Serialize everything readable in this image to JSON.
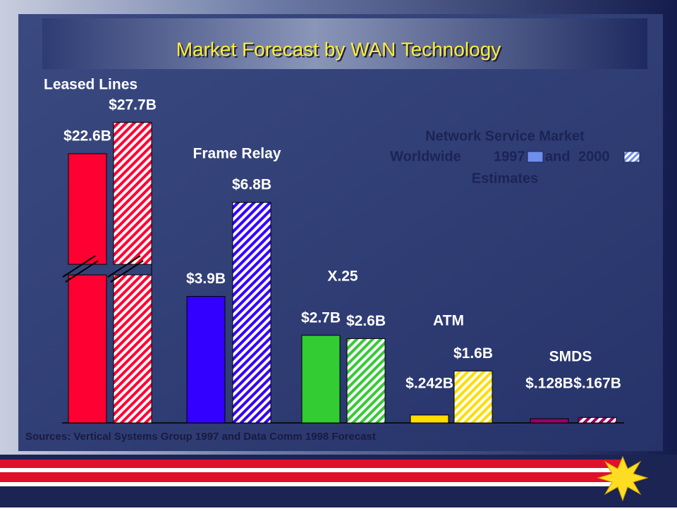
{
  "chart_data": {
    "type": "bar",
    "title": "Market Forecast by WAN Technology",
    "categories": [
      "Leased Lines",
      "Frame Relay",
      "X.25",
      "ATM",
      "SMDS"
    ],
    "colors": [
      "#ff0033",
      "#3300ff",
      "#33cc33",
      "#ffdd00",
      "#990066"
    ],
    "series": [
      {
        "name": "1997",
        "color": "#6f8fef",
        "pattern": "solid",
        "values": [
          22.6,
          3.9,
          2.7,
          0.242,
          0.128
        ],
        "value_labels": [
          "$22.6B",
          "$3.9B",
          "$2.7B",
          "$.242B",
          "$.128B"
        ]
      },
      {
        "name": "2000",
        "color": "#6f8fef",
        "pattern": "hatch",
        "values": [
          27.7,
          6.8,
          2.6,
          1.6,
          0.167
        ],
        "value_labels": [
          "$27.7B",
          "$6.8B",
          "$2.6B",
          "$1.6B",
          "$.167B"
        ]
      }
    ],
    "legend_text": [
      "Network Service Market",
      "Worldwide",
      "and",
      "Estimates"
    ],
    "source": "Sources: Vertical Systems Group 1997 and Data Comm 1998 Forecast"
  }
}
